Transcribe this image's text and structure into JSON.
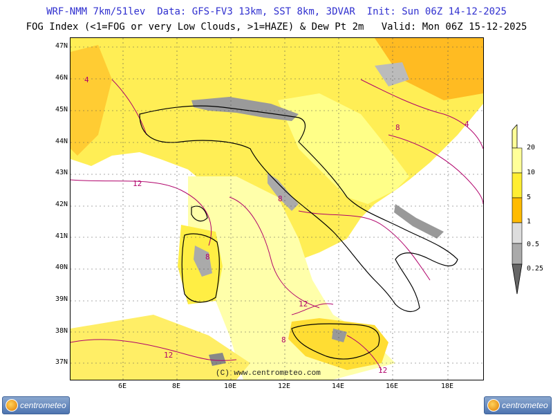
{
  "header": {
    "line1": "WRF-NMM 7km/51lev  Data: GFS-FV3 13km, SST 8km, 3DVAR  Init: Sun 06Z 14-12-2025",
    "line2": "FOG Index (<1=FOG or very Low Clouds, >1=HAZE) & Dew Pt 2m   Valid: Mon 06Z 15-12-2025"
  },
  "axes": {
    "lat_labels": [
      "47N",
      "46N",
      "45N",
      "44N",
      "43N",
      "42N",
      "41N",
      "40N",
      "39N",
      "38N",
      "37N"
    ],
    "lon_labels": [
      "6E",
      "8E",
      "10E",
      "12E",
      "14E",
      "16E",
      "18E"
    ]
  },
  "scale": {
    "labels": [
      "20",
      "10",
      "5",
      "1",
      "0.5",
      "0.25"
    ],
    "colors": [
      "#ffff99",
      "#ffee33",
      "#ffbb00",
      "#dddddd",
      "#aaaaaa",
      "#777777"
    ]
  },
  "colors": {
    "sea": "#ffffff",
    "land_haze": "#ffee55",
    "fog": "#9a9a9a",
    "dewpt_contour": "#b0006a",
    "coast": "#000000"
  },
  "map_text": {
    "copyright": "(C) www.centrometeo.com",
    "contour_labels": [
      "12",
      "12",
      "8",
      "4",
      "8",
      "12",
      "8",
      "4",
      "12",
      "8"
    ]
  },
  "logos": {
    "left": "centrometeo",
    "right": "centrometeo"
  }
}
